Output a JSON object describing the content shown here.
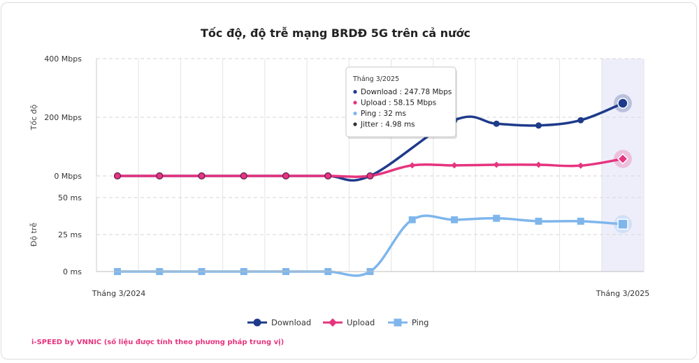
{
  "chart_data": {
    "type": "line",
    "title": "Tốc độ, độ trễ mạng BRDĐ 5G trên cả nước",
    "x": [
      "Tháng 3/2024",
      "",
      "",
      "",
      "",
      "",
      "",
      "",
      "",
      "",
      "",
      "",
      "Tháng 3/2025"
    ],
    "x_tick_labels": [
      "Tháng 3/2024",
      "Tháng 3/2025"
    ],
    "panels": [
      {
        "ylabel": "Tốc độ",
        "ylim": [
          0,
          400
        ],
        "y_ticks": [
          "0 Mbps",
          "200 Mbps",
          "400 Mbps"
        ],
        "series": [
          {
            "name": "Download",
            "color": "#1e3a8a",
            "marker": "circle",
            "values": [
              0,
              0,
              0,
              0,
              0,
              0,
              0,
              null,
              190,
              178,
              172,
              190,
              247.78
            ]
          },
          {
            "name": "Upload",
            "color": "#e6347f",
            "marker": "diamond",
            "values": [
              0,
              0,
              0,
              0,
              0,
              0,
              0,
              36,
              36,
              38,
              38,
              35,
              58.15
            ]
          }
        ]
      },
      {
        "ylabel": "Độ trễ",
        "ylim": [
          0,
          50
        ],
        "y_ticks": [
          "0 ms",
          "25 ms",
          "50 ms"
        ],
        "series": [
          {
            "name": "Ping",
            "color": "#7eb6ec",
            "marker": "square",
            "values": [
              0,
              0,
              0,
              0,
              0,
              0,
              0,
              35,
              35,
              36,
              34,
              34,
              32
            ]
          }
        ]
      }
    ],
    "tooltip": {
      "title": "Tháng 3/2025",
      "items": [
        {
          "label": "Download : 247.78 Mbps",
          "color": "#1e3a8a"
        },
        {
          "label": "Upload : 58.15 Mbps",
          "color": "#e6347f"
        },
        {
          "label": "Ping : 32 ms",
          "color": "#7eb6ec"
        },
        {
          "label": "Jitter : 4.98 ms",
          "color": "#333333"
        }
      ]
    },
    "legend": [
      "Download",
      "Upload",
      "Ping"
    ],
    "grid": true,
    "highlight_index": 12
  },
  "footer": "i-SPEED by VNNIC (số liệu được tính theo phương pháp trung vị)"
}
